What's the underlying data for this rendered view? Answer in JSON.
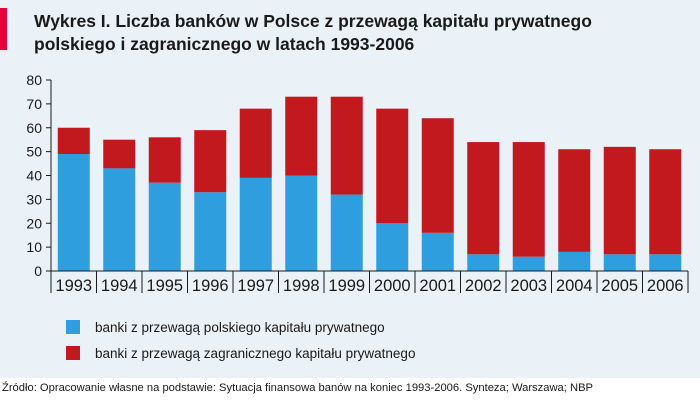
{
  "title_lines": [
    "Wykres I. Liczba banków w Polsce z przewagą kapitału prywatnego",
    "polskiego i zagranicznego w latach 1993-2006"
  ],
  "source": "Źródło: Opracowanie własne na podstawie: Sytuacja finansowa banów na koniec 1993-2006. Synteza; Warszawa; NBP",
  "colors": {
    "background": "#eaf1f7",
    "accent": "#e4003a",
    "polish": "#2f9ede",
    "foreign": "#c2191f"
  },
  "chart_data": {
    "type": "bar",
    "stacked": true,
    "categories": [
      "1993",
      "1994",
      "1995",
      "1996",
      "1997",
      "1998",
      "1999",
      "2000",
      "2001",
      "2002",
      "2003",
      "2004",
      "2005",
      "2006"
    ],
    "series": [
      {
        "name": "banki z przewagą polskiego kapitału prywatnego",
        "values": [
          49,
          43,
          37,
          33,
          39,
          40,
          32,
          20,
          16,
          7,
          6,
          8,
          7,
          7
        ]
      },
      {
        "name": "banki z przewagą zagranicznego kapitału prywatnego",
        "values": [
          11,
          12,
          19,
          26,
          29,
          33,
          41,
          48,
          48,
          47,
          48,
          43,
          45,
          44
        ]
      }
    ],
    "ylim": [
      0,
      80
    ],
    "yticks": [
      0,
      10,
      20,
      30,
      40,
      50,
      60,
      70,
      80
    ],
    "grid": false,
    "legend_position": "bottom-left"
  }
}
